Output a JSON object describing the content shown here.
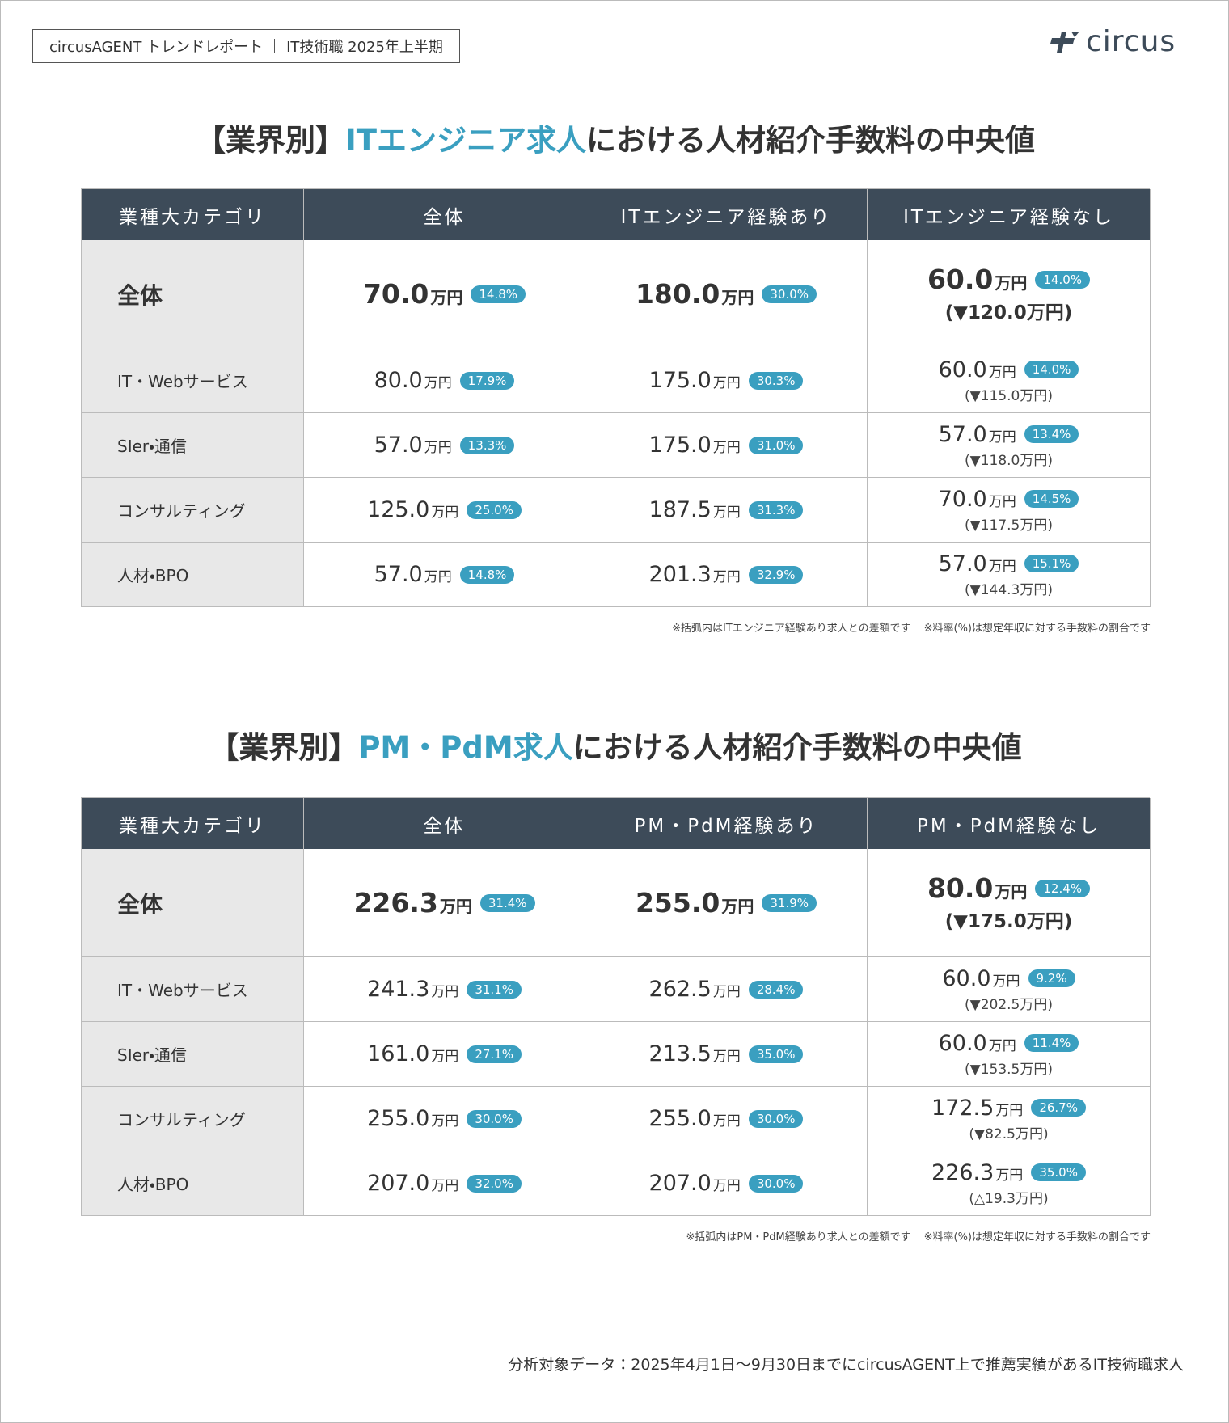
{
  "header": {
    "report": "circusAGENT トレンドレポート",
    "period": "IT技術職 2025年上半期",
    "logo": "circus"
  },
  "sections": [
    {
      "title": {
        "prefix": "【業界別】",
        "highlight": "ITエンジニア求人",
        "suffix": "における人材紹介手数料の中央値"
      },
      "columns": [
        "業種大カテゴリ",
        "全体",
        "ITエンジニア経験あり",
        "ITエンジニア経験なし"
      ],
      "rows": [
        {
          "category": "全体",
          "cells": [
            {
              "value": "70.0",
              "unit": "万円",
              "rate": "14.8%"
            },
            {
              "value": "180.0",
              "unit": "万円",
              "rate": "30.0%"
            },
            {
              "value": "60.0",
              "unit": "万円",
              "rate": "14.0%",
              "diff": "(▼120.0万円)"
            }
          ]
        },
        {
          "category": "IT・Webサービス",
          "cells": [
            {
              "value": "80.0",
              "unit": "万円",
              "rate": "17.9%"
            },
            {
              "value": "175.0",
              "unit": "万円",
              "rate": "30.3%"
            },
            {
              "value": "60.0",
              "unit": "万円",
              "rate": "14.0%",
              "diff": "(▼115.0万円)"
            }
          ]
        },
        {
          "category": "SIer・通信",
          "cells": [
            {
              "value": "57.0",
              "unit": "万円",
              "rate": "13.3%"
            },
            {
              "value": "175.0",
              "unit": "万円",
              "rate": "31.0%"
            },
            {
              "value": "57.0",
              "unit": "万円",
              "rate": "13.4%",
              "diff": "(▼118.0万円)"
            }
          ]
        },
        {
          "category": "コンサルティング",
          "cells": [
            {
              "value": "125.0",
              "unit": "万円",
              "rate": "25.0%"
            },
            {
              "value": "187.5",
              "unit": "万円",
              "rate": "31.3%"
            },
            {
              "value": "70.0",
              "unit": "万円",
              "rate": "14.5%",
              "diff": "(▼117.5万円)"
            }
          ]
        },
        {
          "category": "人材・BPO",
          "cells": [
            {
              "value": "57.0",
              "unit": "万円",
              "rate": "14.8%"
            },
            {
              "value": "201.3",
              "unit": "万円",
              "rate": "32.9%"
            },
            {
              "value": "57.0",
              "unit": "万円",
              "rate": "15.1%",
              "diff": "(▼144.3万円)"
            }
          ]
        }
      ],
      "notes": [
        "※括弧内はITエンジニア経験あり求人との差額です",
        "※料率(%)は想定年収に対する手数料の割合です"
      ]
    },
    {
      "title": {
        "prefix": "【業界別】",
        "highlight": "PM・PdM求人",
        "suffix": "における人材紹介手数料の中央値"
      },
      "columns": [
        "業種大カテゴリ",
        "全体",
        "PM・PdM経験あり",
        "PM・PdM経験なし"
      ],
      "rows": [
        {
          "category": "全体",
          "cells": [
            {
              "value": "226.3",
              "unit": "万円",
              "rate": "31.4%"
            },
            {
              "value": "255.0",
              "unit": "万円",
              "rate": "31.9%"
            },
            {
              "value": "80.0",
              "unit": "万円",
              "rate": "12.4%",
              "diff": "(▼175.0万円)"
            }
          ]
        },
        {
          "category": "IT・Webサービス",
          "cells": [
            {
              "value": "241.3",
              "unit": "万円",
              "rate": "31.1%"
            },
            {
              "value": "262.5",
              "unit": "万円",
              "rate": "28.4%"
            },
            {
              "value": "60.0",
              "unit": "万円",
              "rate": "9.2%",
              "diff": "(▼202.5万円)"
            }
          ]
        },
        {
          "category": "SIer・通信",
          "cells": [
            {
              "value": "161.0",
              "unit": "万円",
              "rate": "27.1%"
            },
            {
              "value": "213.5",
              "unit": "万円",
              "rate": "35.0%"
            },
            {
              "value": "60.0",
              "unit": "万円",
              "rate": "11.4%",
              "diff": "(▼153.5万円)"
            }
          ]
        },
        {
          "category": "コンサルティング",
          "cells": [
            {
              "value": "255.0",
              "unit": "万円",
              "rate": "30.0%"
            },
            {
              "value": "255.0",
              "unit": "万円",
              "rate": "30.0%"
            },
            {
              "value": "172.5",
              "unit": "万円",
              "rate": "26.7%",
              "diff": "(▼82.5万円)"
            }
          ]
        },
        {
          "category": "人材・BPO",
          "cells": [
            {
              "value": "207.0",
              "unit": "万円",
              "rate": "32.0%"
            },
            {
              "value": "207.0",
              "unit": "万円",
              "rate": "30.0%"
            },
            {
              "value": "226.3",
              "unit": "万円",
              "rate": "35.0%",
              "diff": "(△19.3万円)"
            }
          ]
        }
      ],
      "notes": [
        "※括弧内はPM・PdM経験あり求人との差額です",
        "※料率(%)は想定年収に対する手数料の割合です"
      ]
    }
  ],
  "footer": "分析対象データ：2025年4月1日〜9月30日までにcircusAGENT上で推薦実績があるIT技術職求人"
}
